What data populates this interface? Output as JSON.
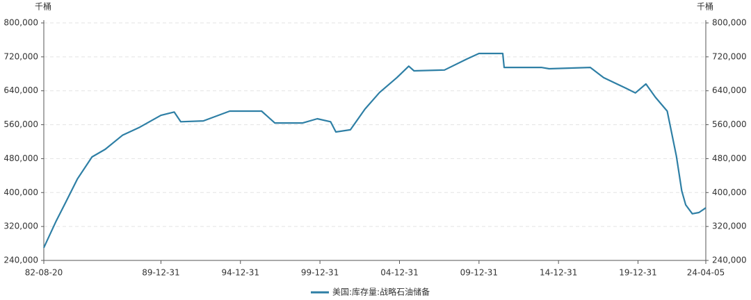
{
  "chart_data": {
    "type": "line",
    "y_label": "千桶",
    "x": [
      "82-08-20",
      "83-05-31",
      "83-12-31",
      "84-09-30",
      "85-08-31",
      "86-06-30",
      "87-07-31",
      "88-08-31",
      "89-12-31",
      "90-10-31",
      "91-03-31",
      "92-08-31",
      "94-04-30",
      "96-04-30",
      "97-02-28",
      "98-11-30",
      "99-10-31",
      "00-08-31",
      "00-12-31",
      "01-11-30",
      "02-10-31",
      "03-09-30",
      "04-10-31",
      "05-07-31",
      "05-11-30",
      "07-10-31",
      "09-03-31",
      "09-12-31",
      "11-06-30",
      "11-07-31",
      "13-11-30",
      "14-05-31",
      "16-12-31",
      "17-10-31",
      "19-03-31",
      "19-10-31",
      "20-06-30",
      "21-01-31",
      "21-10-31",
      "22-05-31",
      "22-09-30",
      "22-12-31",
      "23-05-31",
      "23-10-31",
      "24-04-05"
    ],
    "series": [
      {
        "name": "美国:库存量:战略石油储备",
        "color": "#2e7fa5",
        "values": [
          270000,
          333000,
          376000,
          432000,
          484000,
          502000,
          535000,
          554000,
          582000,
          590000,
          567000,
          569000,
          592000,
          592000,
          564000,
          564000,
          574000,
          567000,
          543000,
          548000,
          597000,
          636000,
          671000,
          698000,
          687000,
          689000,
          715000,
          728000,
          728000,
          695000,
          695000,
          692000,
          695000,
          671000,
          646000,
          635000,
          656000,
          625000,
          592000,
          486000,
          404000,
          371000,
          350000,
          353000,
          364000
        ]
      }
    ],
    "xlim": [
      "82-08-20",
      "24-04-05"
    ],
    "xticks": [
      "82-08-20",
      "89-12-31",
      "94-12-31",
      "99-12-31",
      "04-12-31",
      "09-12-31",
      "14-12-31",
      "19-12-31",
      "24-04-05"
    ],
    "ylim": [
      240000,
      800000
    ],
    "yticks": [
      {
        "value": 240000,
        "label": "240,000"
      },
      {
        "value": 320000,
        "label": "320,000"
      },
      {
        "value": 400000,
        "label": "400,000"
      },
      {
        "value": 480000,
        "label": "480,000"
      },
      {
        "value": 560000,
        "label": "560,000"
      },
      {
        "value": 640000,
        "label": "640,000"
      },
      {
        "value": 720000,
        "label": "720,000"
      },
      {
        "value": 800000,
        "label": "800,000"
      }
    ],
    "grid": true
  }
}
